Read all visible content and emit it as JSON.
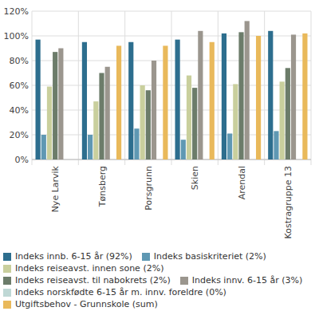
{
  "chart_data": {
    "type": "bar",
    "categories": [
      "Nye Larvik",
      "Tønsberg",
      "Porsgrunn",
      "Skien",
      "Arendal",
      "Kostragruppe 13"
    ],
    "series": [
      {
        "name": "Indeks innb. 6-15 år (92%)",
        "color": "#2d6e8e",
        "values": [
          97,
          95,
          95,
          97,
          102,
          104
        ]
      },
      {
        "name": "Indeks basiskriteriet (2%)",
        "color": "#5f98b3",
        "values": [
          20,
          20,
          25,
          16,
          21,
          23
        ]
      },
      {
        "name": "Indeks reiseavst. innen sone (2%)",
        "color": "#c9cf9d",
        "values": [
          59,
          47,
          60,
          68,
          61,
          63
        ]
      },
      {
        "name": "Indeks reiseavst. til nabokrets (2%)",
        "color": "#6c7c6a",
        "values": [
          87,
          70,
          56,
          58,
          103,
          74
        ]
      },
      {
        "name": "Indeks innv. 6-15 år (3%)",
        "color": "#9b968e",
        "values": [
          90,
          75,
          80,
          104,
          112,
          101
        ]
      },
      {
        "name": "Indeks norskfødte 6-15 år m. innv. foreldre (0%)",
        "color": "#bfd8d5",
        "values": [
          0,
          0,
          0,
          0,
          0,
          0
        ]
      },
      {
        "name": "Utgiftsbehov - Grunnskole (sum)",
        "color": "#e9b95b",
        "values": [
          null,
          92,
          92,
          95,
          100,
          102
        ]
      }
    ],
    "ylim": [
      0,
      120
    ],
    "yticks": [
      {
        "value": 0,
        "label": "0%"
      },
      {
        "value": 20,
        "label": "20%"
      },
      {
        "value": 40,
        "label": "40%"
      },
      {
        "value": 60,
        "label": "60%"
      },
      {
        "value": 80,
        "label": "80%"
      },
      {
        "value": 100,
        "label": "100%"
      },
      {
        "value": 120,
        "label": "120%"
      }
    ],
    "grid": true,
    "legend": "bottom"
  }
}
